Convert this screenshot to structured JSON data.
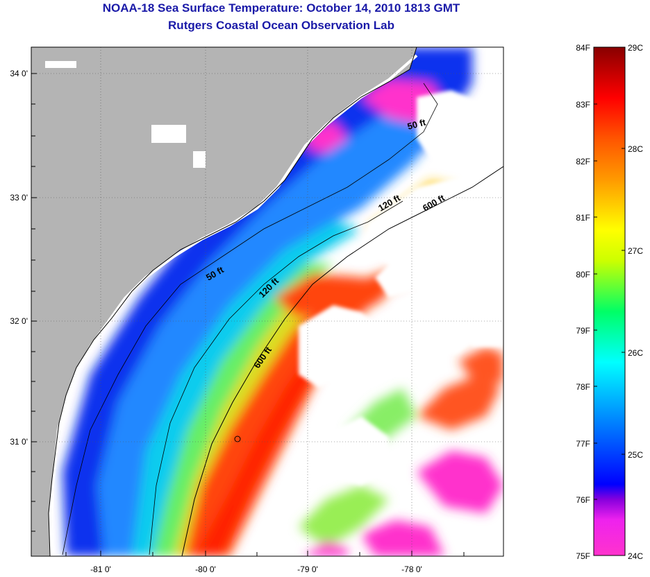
{
  "title": "NOAA-18 Sea Surface Temperature:  October 14, 2010 1813 GMT",
  "subtitle": "Rutgers Coastal Ocean Observation Lab",
  "colors": {
    "land": "#b4b4b4",
    "cloud": "#ffffff",
    "coastline": "#000000",
    "title": "#1a1aa8"
  },
  "axes": {
    "lon_labels": [
      "-81 0'",
      "-80 0'",
      "-79 0'",
      "-78 0'"
    ],
    "lat_labels": [
      "34 0'",
      "33 0'",
      "32 0'",
      "31 0'"
    ]
  },
  "depth_contour_labels": [
    "50 ft",
    "120 ft",
    "600 ft",
    "50 ft",
    "120 ft",
    "600 ft"
  ],
  "colorbar": {
    "f_labels": [
      "84F",
      "83F",
      "82F",
      "81F",
      "80F",
      "79F",
      "78F",
      "77F",
      "76F",
      "75F"
    ],
    "c_labels": [
      "29C",
      "28C",
      "27C",
      "26C",
      "25C",
      "24C"
    ],
    "range_f": [
      75,
      84
    ],
    "gradient": [
      "#ff33cc",
      "#8800dd",
      "#0000ff",
      "#00aaff",
      "#00ffff",
      "#00ff66",
      "#ffff00",
      "#ff8800",
      "#ff0000",
      "#880000"
    ]
  }
}
